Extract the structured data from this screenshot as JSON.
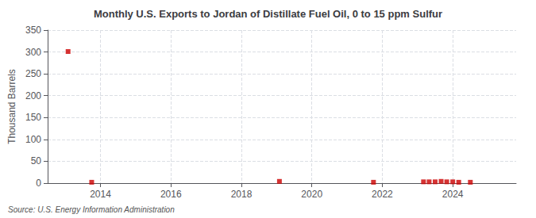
{
  "chart_data": {
    "type": "scatter",
    "title": "Monthly U.S. Exports to Jordan of Distillate Fuel Oil, 0 to 15 ppm Sulfur",
    "ylabel": "Thousand Barrels",
    "annotation": "Source: U.S. Energy Information Administration",
    "x": [
      2013.08,
      2013.75,
      2019.08,
      2021.75,
      2023.17,
      2023.33,
      2023.5,
      2023.67,
      2023.83,
      2024.0,
      2024.17,
      2024.5
    ],
    "values": [
      301,
      2,
      4,
      2,
      3,
      3,
      3,
      4,
      3,
      3,
      2,
      2
    ],
    "color": "#cc0000",
    "marker": "square",
    "xlim": [
      2012.5,
      2025.8
    ],
    "xticks": [
      2014,
      2016,
      2018,
      2020,
      2022,
      2024
    ],
    "ylim": [
      0,
      350
    ],
    "yticks": [
      0,
      50,
      100,
      150,
      200,
      250,
      300,
      350
    ],
    "grid": true
  }
}
